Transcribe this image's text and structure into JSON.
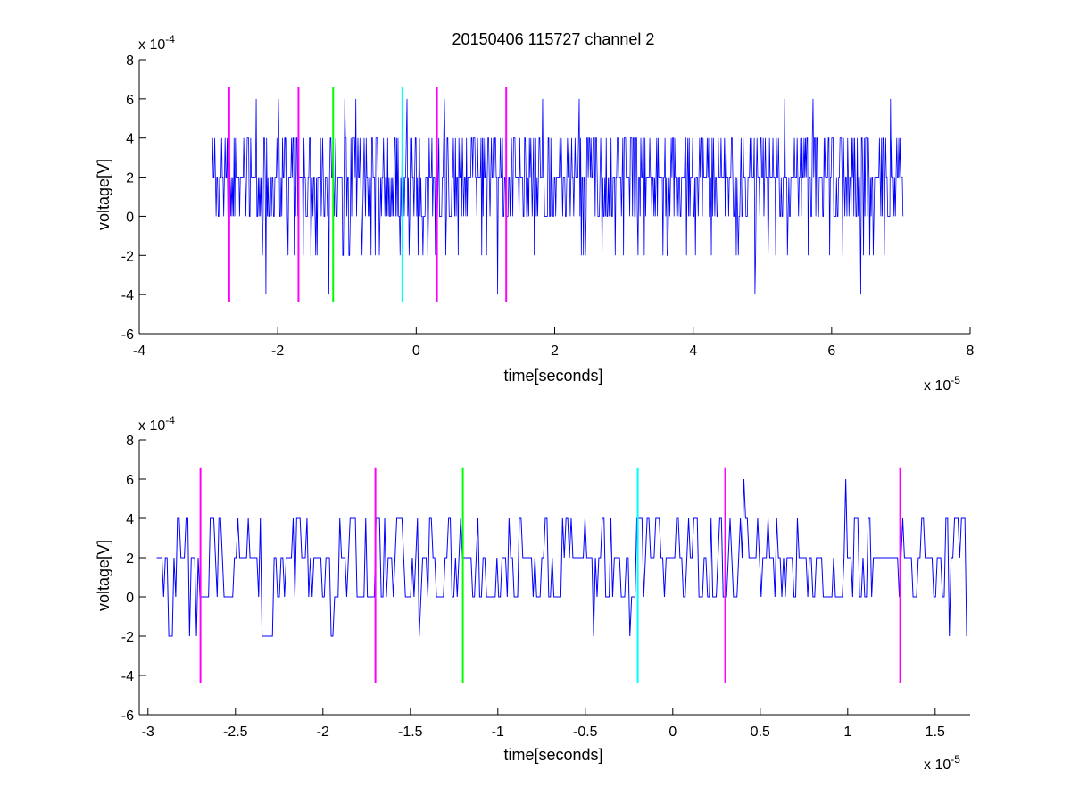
{
  "figure": {
    "title": "20150406 115727 channel 2"
  },
  "chart_data": [
    {
      "type": "line",
      "xlabel": "time[seconds]",
      "ylabel": "voltage[V]",
      "x_exponent_label": "x 10",
      "x_exponent": "-5",
      "y_exponent_label": "x 10",
      "y_exponent": "-4",
      "xlim": [
        -4,
        8
      ],
      "ylim": [
        -6,
        8
      ],
      "xticks": [
        -4,
        -2,
        0,
        2,
        4,
        6,
        8
      ],
      "xtick_labels": [
        "-4",
        "-2",
        "0",
        "2",
        "4",
        "6",
        "8"
      ],
      "yticks": [
        -6,
        -4,
        -2,
        0,
        2,
        4,
        6,
        8
      ],
      "ytick_labels": [
        "-6",
        "-4",
        "-2",
        "0",
        "2",
        "4",
        "6",
        "8"
      ],
      "grid": false,
      "signal": {
        "color": "#0000ff",
        "x_range": [
          -2.95,
          7.03
        ],
        "levels": [
          -4,
          -2,
          0,
          2,
          4,
          6
        ],
        "dense": true,
        "samples": 1000
      },
      "markers": [
        {
          "x": -2.7,
          "color": "#ff00ff"
        },
        {
          "x": -1.7,
          "color": "#ff00ff"
        },
        {
          "x": -1.2,
          "color": "#00ff00"
        },
        {
          "x": -0.2,
          "color": "#00ffff"
        },
        {
          "x": 0.3,
          "color": "#ff00ff"
        },
        {
          "x": 1.3,
          "color": "#ff00ff"
        }
      ],
      "marker_range": [
        -4.4,
        6.6
      ]
    },
    {
      "type": "line",
      "xlabel": "time[seconds]",
      "ylabel": "voltage[V]",
      "x_exponent_label": "x 10",
      "x_exponent": "-5",
      "y_exponent_label": "x 10",
      "y_exponent": "-4",
      "xlim": [
        -3.05,
        1.7
      ],
      "ylim": [
        -6,
        8
      ],
      "xticks": [
        -3,
        -2.5,
        -2,
        -1.5,
        -1,
        -0.5,
        0,
        0.5,
        1,
        1.5
      ],
      "xtick_labels": [
        "-3",
        "-2.5",
        "-2",
        "-1.5",
        "-1",
        "-0.5",
        "0",
        "0.5",
        "1",
        "1.5"
      ],
      "yticks": [
        -6,
        -4,
        -2,
        0,
        2,
        4,
        6,
        8
      ],
      "ytick_labels": [
        "-6",
        "-4",
        "-2",
        "0",
        "2",
        "4",
        "6",
        "8"
      ],
      "grid": false,
      "signal": {
        "color": "#0000ff",
        "x_range": [
          -2.95,
          1.68
        ],
        "levels": [
          -2,
          0,
          2,
          4,
          6
        ],
        "dense": false,
        "samples": 470
      },
      "markers": [
        {
          "x": -2.7,
          "color": "#ff00ff"
        },
        {
          "x": -1.7,
          "color": "#ff00ff"
        },
        {
          "x": -1.2,
          "color": "#00ff00"
        },
        {
          "x": -0.2,
          "color": "#00ffff"
        },
        {
          "x": 0.3,
          "color": "#ff00ff"
        },
        {
          "x": 1.3,
          "color": "#ff00ff"
        }
      ],
      "marker_range": [
        -4.4,
        6.6
      ]
    }
  ]
}
